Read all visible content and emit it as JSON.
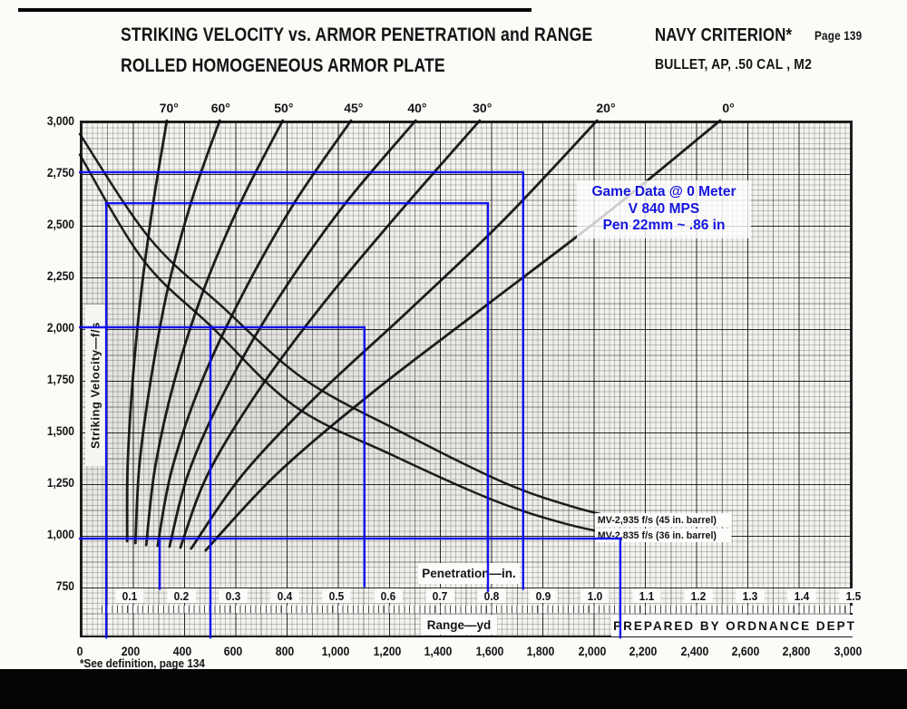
{
  "scan": {
    "page_label": "Page 139",
    "footnote": "*See definition, page 134"
  },
  "header": {
    "title_line1": "STRIKING VELOCITY vs. ARMOR PENETRATION and RANGE",
    "title_line2": "ROLLED HOMOGENEOUS ARMOR PLATE",
    "criterion": "NAVY CRITERION*",
    "bullet_spec": "BULLET, AP, .50 CAL , M2",
    "prepared_by": "PREPARED BY ORDNANCE DEPT"
  },
  "annotation": {
    "line1": "Game Data @ 0 Meter",
    "line2": "V 840 MPS",
    "line3": "Pen 22mm ~ .86 in",
    "text_color": "#1414dd"
  },
  "chart_data": {
    "type": "line",
    "title": "Striking Velocity vs. Armor Penetration and Range — Rolled Homogeneous Armor Plate (Navy Criterion), Bullet AP .50 cal M2",
    "grid": true,
    "y_axis": {
      "label": "Striking Velocity—f/s",
      "min": 500,
      "max": 3000,
      "ticks": [
        {
          "label": "3,000",
          "v": 3000
        },
        {
          "label": "2,750",
          "v": 2750
        },
        {
          "label": "2,500",
          "v": 2500
        },
        {
          "label": "2,250",
          "v": 2250
        },
        {
          "label": "2,000",
          "v": 2000
        },
        {
          "label": "1,750",
          "v": 1750
        },
        {
          "label": "1,500",
          "v": 1500
        },
        {
          "label": "1,250",
          "v": 1250
        },
        {
          "label": "1,000",
          "v": 1000
        },
        {
          "label": "750",
          "v": 750
        }
      ]
    },
    "x_axis_penetration": {
      "label": "Penetration—in.",
      "min": 0,
      "max": 1.5,
      "ticks": [
        0.1,
        0.2,
        0.3,
        0.4,
        0.5,
        0.6,
        0.7,
        0.8,
        0.9,
        1.0,
        1.1,
        1.2,
        1.3,
        1.4,
        1.5
      ]
    },
    "x_axis_range": {
      "label": "Range—yd",
      "min": 0,
      "max": 3000,
      "ticks": [
        {
          "label": "0",
          "yd": 0
        },
        {
          "label": "200",
          "yd": 200
        },
        {
          "label": "400",
          "yd": 400
        },
        {
          "label": "600",
          "yd": 600
        },
        {
          "label": "800",
          "yd": 800
        },
        {
          "label": "1,000",
          "yd": 1000
        },
        {
          "label": "1,200",
          "yd": 1200
        },
        {
          "label": "1,400",
          "yd": 1400
        },
        {
          "label": "1,600",
          "yd": 1600
        },
        {
          "label": "1,800",
          "yd": 1800
        },
        {
          "label": "2,000",
          "yd": 2000
        },
        {
          "label": "2,200",
          "yd": 2200
        },
        {
          "label": "2,400",
          "yd": 2400
        },
        {
          "label": "2,600",
          "yd": 2600
        },
        {
          "label": "2,800",
          "yd": 2800
        },
        {
          "label": "3,000",
          "yd": 3000
        }
      ]
    },
    "obliquity_curves": [
      {
        "label": "70°",
        "label_pen_x": 0.176,
        "points_pen_v": [
          [
            0.095,
            965
          ],
          [
            0.096,
            1330
          ],
          [
            0.106,
            1750
          ],
          [
            0.123,
            2185
          ],
          [
            0.146,
            2610
          ],
          [
            0.172,
            3000
          ]
        ]
      },
      {
        "label": "60°",
        "label_pen_x": 0.276,
        "points_pen_v": [
          [
            0.111,
            956
          ],
          [
            0.119,
            1338
          ],
          [
            0.142,
            1763
          ],
          [
            0.175,
            2202
          ],
          [
            0.221,
            2623
          ],
          [
            0.274,
            3000
          ]
        ]
      },
      {
        "label": "50°",
        "label_pen_x": 0.398,
        "points_pen_v": [
          [
            0.132,
            947
          ],
          [
            0.149,
            1320
          ],
          [
            0.186,
            1737
          ],
          [
            0.242,
            2174
          ],
          [
            0.314,
            2601
          ],
          [
            0.396,
            3000
          ]
        ]
      },
      {
        "label": "45°",
        "label_pen_x": 0.533,
        "points_pen_v": [
          [
            0.154,
            943
          ],
          [
            0.181,
            1307
          ],
          [
            0.237,
            1724
          ],
          [
            0.318,
            2158
          ],
          [
            0.416,
            2592
          ],
          [
            0.528,
            3000
          ]
        ]
      },
      {
        "label": "40°",
        "label_pen_x": 0.656,
        "points_pen_v": [
          [
            0.177,
            939
          ],
          [
            0.214,
            1298
          ],
          [
            0.288,
            1711
          ],
          [
            0.389,
            2145
          ],
          [
            0.512,
            2583
          ],
          [
            0.653,
            3000
          ]
        ]
      },
      {
        "label": "30°",
        "label_pen_x": 0.782,
        "points_pen_v": [
          [
            0.198,
            934
          ],
          [
            0.251,
            1289
          ],
          [
            0.349,
            1693
          ],
          [
            0.477,
            2123
          ],
          [
            0.625,
            2566
          ],
          [
            0.777,
            3000
          ]
        ]
      },
      {
        "label": "20°",
        "label_pen_x": 1.021,
        "points_pen_v": [
          [
            0.219,
            930
          ],
          [
            0.319,
            1289
          ],
          [
            0.463,
            1671
          ],
          [
            0.639,
            2079
          ],
          [
            0.823,
            2518
          ],
          [
            1.004,
            3000
          ]
        ]
      },
      {
        "label": "0°",
        "label_pen_x": 1.258,
        "points_pen_v": [
          [
            0.247,
            921
          ],
          [
            0.386,
            1294
          ],
          [
            0.572,
            1689
          ],
          [
            0.789,
            2105
          ],
          [
            1.019,
            2544
          ],
          [
            1.242,
            3000
          ]
        ]
      }
    ],
    "velocity_range_curves": [
      {
        "label": "MV-2,935 f/s (45 in. barrel)",
        "points_range_v": [
          [
            0,
            2935
          ],
          [
            273,
            2430
          ],
          [
            556,
            2100
          ],
          [
            875,
            1750
          ],
          [
            1265,
            1487
          ],
          [
            1654,
            1250
          ],
          [
            1938,
            1127
          ],
          [
            2175,
            1057
          ]
        ]
      },
      {
        "label": "MV-2,835 f/s (36 in. barrel)",
        "points_range_v": [
          [
            0,
            2835
          ],
          [
            248,
            2325
          ],
          [
            517,
            2000
          ],
          [
            840,
            1618
          ],
          [
            1229,
            1377
          ],
          [
            1619,
            1162
          ],
          [
            1902,
            1048
          ],
          [
            2154,
            982
          ]
        ]
      }
    ],
    "overlay_color": "#0a0af2",
    "overlay_readings": [
      {
        "velocity_fps": 2750,
        "penetration_in": 0.86
      },
      {
        "range_yd": 100,
        "velocity_fps": 2600,
        "penetration_in": 0.79
      },
      {
        "range_yd": 500,
        "velocity_fps": 2000,
        "penetration_in": 0.55
      },
      {
        "range_yd": 2110,
        "velocity_fps": 980,
        "penetration_in": 0.16
      }
    ],
    "overlay_lines": [
      {
        "space": "pen",
        "points": [
          [
            0.004,
            2750
          ],
          [
            0.861,
            2750
          ],
          [
            0.861,
            735
          ]
        ]
      },
      {
        "space": "pen",
        "points": [
          [
            0.054,
            2600
          ],
          [
            0.793,
            2600
          ],
          [
            0.793,
            725
          ]
        ]
      },
      {
        "space": "range",
        "points": [
          [
            103,
            2600
          ],
          [
            103,
            500
          ]
        ]
      },
      {
        "space": "pen",
        "points": [
          [
            0.004,
            2000
          ],
          [
            0.554,
            2000
          ],
          [
            0.554,
            748
          ]
        ]
      },
      {
        "space": "range",
        "points": [
          [
            510,
            2000
          ],
          [
            510,
            500
          ]
        ]
      },
      {
        "space": "pen",
        "points": [
          [
            0.004,
            978
          ],
          [
            1.049,
            978
          ]
        ]
      },
      {
        "space": "range",
        "points": [
          [
            2111,
            978
          ],
          [
            2111,
            500
          ]
        ]
      },
      {
        "space": "pen",
        "points": [
          [
            0.158,
            978
          ],
          [
            0.158,
            735
          ]
        ]
      }
    ]
  }
}
